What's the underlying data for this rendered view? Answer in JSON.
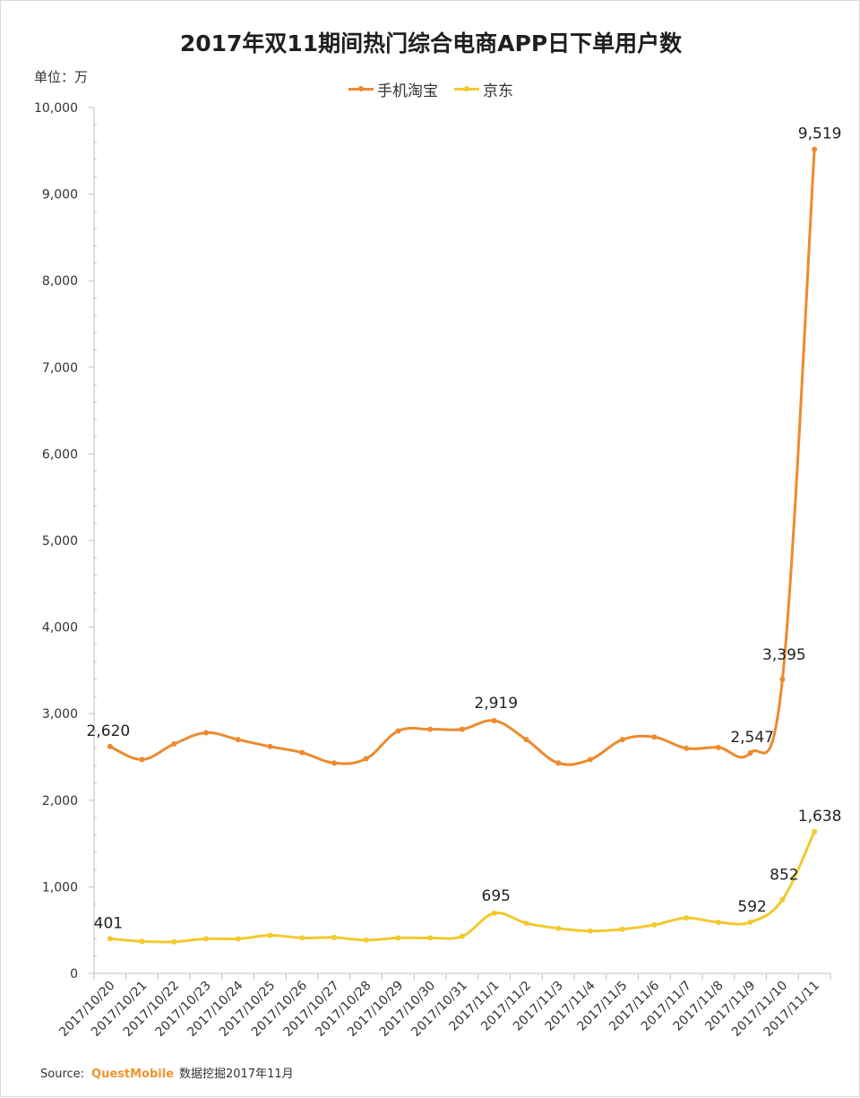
{
  "colors": {
    "taobao": "#ee8a2c",
    "jd": "#f3c92c",
    "axis": "#bfbfbf",
    "brand": "#f0932b"
  },
  "unit_label": "单位：万",
  "source": {
    "prefix": "Source:",
    "brand": "QuestMobile",
    "suffix": "数据挖掘2017年11月"
  },
  "chart_data": {
    "type": "line",
    "title": "2017年双11期间热门综合电商APP日下单用户数",
    "ylim": [
      0,
      10000
    ],
    "yticks": [
      0,
      1000,
      2000,
      3000,
      4000,
      5000,
      6000,
      7000,
      8000,
      9000,
      10000
    ],
    "ytick_labels": [
      "0",
      "1,000",
      "2,000",
      "3,000",
      "4,000",
      "5,000",
      "6,000",
      "7,000",
      "8,000",
      "9,000",
      "10,000"
    ],
    "grid": false,
    "legend": "top-center",
    "categories": [
      "2017/10/20",
      "2017/10/21",
      "2017/10/22",
      "2017/10/23",
      "2017/10/24",
      "2017/10/25",
      "2017/10/26",
      "2017/10/27",
      "2017/10/28",
      "2017/10/29",
      "2017/10/30",
      "2017/10/31",
      "2017/11/1",
      "2017/11/2",
      "2017/11/3",
      "2017/11/4",
      "2017/11/5",
      "2017/11/6",
      "2017/11/7",
      "2017/11/8",
      "2017/11/9",
      "2017/11/10",
      "2017/11/11"
    ],
    "series": [
      {
        "name": "手机淘宝",
        "color_key": "taobao",
        "values": [
          2620,
          2470,
          2650,
          2780,
          2700,
          2620,
          2550,
          2430,
          2480,
          2800,
          2820,
          2820,
          2919,
          2700,
          2430,
          2470,
          2700,
          2730,
          2600,
          2610,
          2547,
          3395,
          9519
        ],
        "labels": {
          "0": "2,620",
          "12": "2,919",
          "20": "2,547",
          "21": "3,395",
          "22": "9,519"
        }
      },
      {
        "name": "京东",
        "color_key": "jd",
        "values": [
          401,
          370,
          365,
          400,
          400,
          440,
          410,
          415,
          385,
          410,
          410,
          430,
          695,
          580,
          520,
          490,
          510,
          560,
          640,
          590,
          592,
          852,
          1638
        ],
        "labels": {
          "0": "401",
          "12": "695",
          "20": "592",
          "21": "852",
          "22": "1,638"
        }
      }
    ]
  }
}
